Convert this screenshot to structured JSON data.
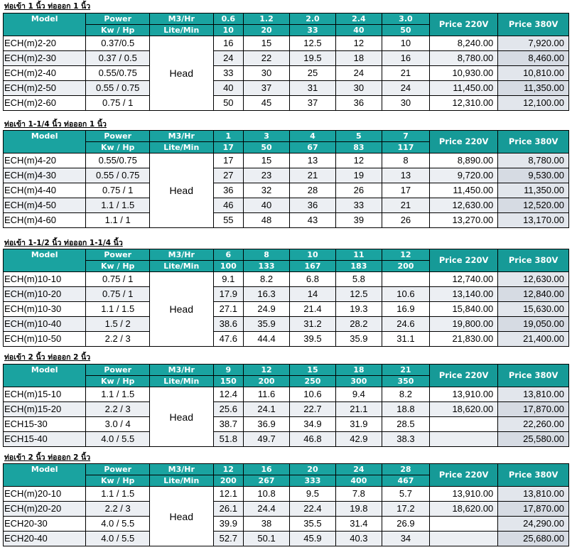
{
  "colors": {
    "header_bg": "#1aa3a0",
    "header_text": "#ffffff",
    "row_alt": "#eceff3"
  },
  "head_label": "Head",
  "sections": [
    {
      "title": "ท่อเข้า 1 นิ้ว ท่อออก 1 นิ้ว",
      "header": {
        "model": "Model",
        "power1": "Power",
        "power2": "Kw / Hp",
        "unit1": "M3/Hr",
        "unit2": "Lite/Min",
        "price220": "Price 220V",
        "price380": "Price 380V"
      },
      "flow_m3": [
        "0.6",
        "1.2",
        "2.0",
        "2.4",
        "3.0"
      ],
      "flow_lpm": [
        "10",
        "20",
        "33",
        "40",
        "50"
      ],
      "rows": [
        {
          "model": "ECH(m)2-20",
          "power": "0.37/0.5",
          "heads": [
            "16",
            "15",
            "12.5",
            "12",
            "10"
          ],
          "p220": "8,240.00",
          "p380": "7,920.00"
        },
        {
          "model": "ECH(m)2-30",
          "power": "0.37 / 0.5",
          "heads": [
            "24",
            "22",
            "19.5",
            "18",
            "16"
          ],
          "p220": "8,780.00",
          "p380": "8,460.00"
        },
        {
          "model": "ECH(m)2-40",
          "power": "0.55/0.75",
          "heads": [
            "33",
            "30",
            "25",
            "24",
            "21"
          ],
          "p220": "10,930.00",
          "p380": "10,810.00"
        },
        {
          "model": "ECH(m)2-50",
          "power": "0.55 / 0.75",
          "heads": [
            "40",
            "37",
            "31",
            "30",
            "24"
          ],
          "p220": "11,450.00",
          "p380": "11,350.00"
        },
        {
          "model": "ECH(m)2-60",
          "power": "0.75 / 1",
          "heads": [
            "50",
            "45",
            "37",
            "36",
            "30"
          ],
          "p220": "12,310.00",
          "p380": "12,100.00"
        }
      ]
    },
    {
      "title": "ท่อเข้า 1-1/4 นิ้ว ท่อออก 1 นิ้ว",
      "header": {
        "model": "Model",
        "power1": "Power",
        "power2": "Kw / Hp",
        "unit1": "M3/Hr",
        "unit2": "Lite/Min",
        "price220": "Price 220V",
        "price380": "Price 380V"
      },
      "flow_m3": [
        "1",
        "3",
        "4",
        "5",
        "7"
      ],
      "flow_lpm": [
        "17",
        "50",
        "67",
        "83",
        "117"
      ],
      "rows": [
        {
          "model": "ECH(m)4-20",
          "power": "0.55/0.75",
          "heads": [
            "17",
            "15",
            "13",
            "12",
            "8"
          ],
          "p220": "8,890.00",
          "p380": "8,780.00"
        },
        {
          "model": "ECH(m)4-30",
          "power": "0.55 / 0.75",
          "heads": [
            "27",
            "23",
            "21",
            "19",
            "13"
          ],
          "p220": "9,720.00",
          "p380": "9,530.00"
        },
        {
          "model": "ECH(m)4-40",
          "power": "0.75 / 1",
          "heads": [
            "36",
            "32",
            "28",
            "26",
            "17"
          ],
          "p220": "11,450.00",
          "p380": "11,350.00"
        },
        {
          "model": "ECH(m)4-50",
          "power": "1.1 / 1.5",
          "heads": [
            "46",
            "40",
            "36",
            "33",
            "21"
          ],
          "p220": "12,630.00",
          "p380": "12,520.00"
        },
        {
          "model": "ECH(m)4-60",
          "power": "1.1  / 1",
          "heads": [
            "55",
            "48",
            "43",
            "39",
            "26"
          ],
          "p220": "13,270.00",
          "p380": "13,170.00"
        }
      ]
    },
    {
      "title": "ท่อเข้า 1-1/2 นิ้ว ท่อออก 1-1/4 นิ้ว",
      "header": {
        "model": "Model",
        "power1": "Power",
        "power2": "Kw / Hp",
        "unit1": "M3/Hr",
        "unit2": "Lite/Min",
        "price220": "Price 220V",
        "price380": "Price 380V"
      },
      "flow_m3": [
        "6",
        "8",
        "10",
        "11",
        "12"
      ],
      "flow_lpm": [
        "100",
        "133",
        "167",
        "183",
        "200"
      ],
      "rows": [
        {
          "model": "ECH(m)10-10",
          "power": "0.75 / 1",
          "heads": [
            "9.1",
            "8.2",
            "6.8",
            "5.8",
            ""
          ],
          "p220": "12,740.00",
          "p380": "12,630.00"
        },
        {
          "model": "ECH(m)10-20",
          "power": "0.75 / 1",
          "heads": [
            "17.9",
            "16.3",
            "14",
            "12.5",
            "10.6"
          ],
          "p220": "13,140.00",
          "p380": "12,840.00"
        },
        {
          "model": "ECH(m)10-30",
          "power": "1.1 / 1.5",
          "heads": [
            "27.1",
            "24.9",
            "21.4",
            "19.3",
            "16.9"
          ],
          "p220": "15,840.00",
          "p380": "15,630.00"
        },
        {
          "model": "ECH(m)10-40",
          "power": "1.5 / 2",
          "heads": [
            "38.6",
            "35.9",
            "31.2",
            "28.2",
            "24.6"
          ],
          "p220": "19,800.00",
          "p380": "19,050.00"
        },
        {
          "model": "ECH(m)10-50",
          "power": "2.2  / 3",
          "heads": [
            "47.6",
            "44.4",
            "39.5",
            "35.9",
            "31.1"
          ],
          "p220": "21,830.00",
          "p380": "21,400.00"
        }
      ]
    },
    {
      "title": "ท่อเข้า 2 นิ้ว ท่อออก 2 นิ้ว",
      "header": {
        "model": "Model",
        "power1": "Power",
        "power2": "Kw / Hp",
        "unit1": "M3/Hr",
        "unit2": "Lite/Min",
        "price220": "Price 220V",
        "price380": "Price 380V"
      },
      "flow_m3": [
        "9",
        "12",
        "15",
        "18",
        "21"
      ],
      "flow_lpm": [
        "150",
        "200",
        "250",
        "300",
        "350"
      ],
      "rows": [
        {
          "model": "ECH(m)15-10",
          "power": "1.1 / 1.5",
          "heads": [
            "12.4",
            "11.6",
            "10.6",
            "9.4",
            "8.2"
          ],
          "p220": "13,910.00",
          "p380": "13,810.00"
        },
        {
          "model": "ECH(m)15-20",
          "power": "2.2 / 3",
          "heads": [
            "25.6",
            "24.1",
            "22.7",
            "21.1",
            "18.8"
          ],
          "p220": "18,620.00",
          "p380": "17,870.00"
        },
        {
          "model": "ECH15-30",
          "power": "3.0 / 4",
          "heads": [
            "38.7",
            "36.9",
            "34.9",
            "31.9",
            "28.5"
          ],
          "p220": "",
          "p380": "22,260.00"
        },
        {
          "model": "ECH15-40",
          "power": "4.0 / 5.5",
          "heads": [
            "51.8",
            "49.7",
            "46.8",
            "42.9",
            "38.3"
          ],
          "p220": "",
          "p380": "25,580.00"
        }
      ]
    },
    {
      "title": "ท่อเข้า 2 นิ้ว ท่อออก 2 นิ้ว",
      "header": {
        "model": "Model",
        "power1": "Power",
        "power2": "Kw / Hp",
        "unit1": "M3/Hr",
        "unit2": "Lite/Min",
        "price220": "Price 220V",
        "price380": "Price 380V"
      },
      "flow_m3": [
        "12",
        "16",
        "20",
        "24",
        "28"
      ],
      "flow_lpm": [
        "200",
        "267",
        "333",
        "400",
        "467"
      ],
      "rows": [
        {
          "model": "ECH(m)20-10",
          "power": "1.1 / 1.5",
          "heads": [
            "12.1",
            "10.8",
            "9.5",
            "7.8",
            "5.7"
          ],
          "p220": "13,910.00",
          "p380": "13,810.00"
        },
        {
          "model": "ECH(m)20-20",
          "power": "2.2 / 3",
          "heads": [
            "26.1",
            "24.4",
            "22.4",
            "19.8",
            "17.2"
          ],
          "p220": "18,620.00",
          "p380": "17,870.00"
        },
        {
          "model": "ECH20-30",
          "power": "4.0 / 5.5",
          "heads": [
            "39.9",
            "38",
            "35.5",
            "31.4",
            "26.9"
          ],
          "p220": "",
          "p380": "24,290.00"
        },
        {
          "model": "ECH20-40",
          "power": "4.0 / 5.5",
          "heads": [
            "52.7",
            "50.1",
            "45.9",
            "40.3",
            "34"
          ],
          "p220": "",
          "p380": "25,680.00"
        }
      ]
    }
  ]
}
